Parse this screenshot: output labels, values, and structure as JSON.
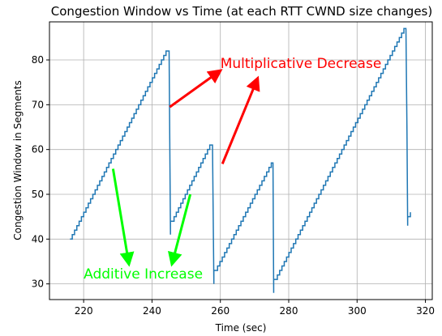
{
  "chart_data": {
    "type": "line",
    "title": "Congestion Window vs Time (at each RTT CWND size changes)",
    "xlabel": "Time (sec)",
    "ylabel": "Congestion Window in Segments",
    "xlim": [
      210,
      322
    ],
    "ylim": [
      26.5,
      88.5
    ],
    "xticks": [
      220,
      240,
      260,
      280,
      300,
      320
    ],
    "yticks": [
      30,
      40,
      50,
      60,
      70,
      80
    ],
    "grid": true,
    "series": [
      {
        "color": "#1f77b4",
        "segments": [
          {
            "kind": "ramp",
            "x0": 216,
            "x1": 244.1,
            "y0": 40,
            "y1": 82
          },
          {
            "kind": "flat",
            "x1": 245.0,
            "y": 82
          },
          {
            "kind": "drop",
            "points": [
              [
                245.4,
                41
              ],
              [
                245.4,
                44
              ]
            ]
          },
          {
            "kind": "ramp",
            "x0": 245.8,
            "x1": 256.9,
            "y0": 44,
            "y1": 61
          },
          {
            "kind": "flat",
            "x1": 257.7,
            "y": 61
          },
          {
            "kind": "drop",
            "points": [
              [
                258.1,
                30
              ],
              [
                258.1,
                33
              ]
            ]
          },
          {
            "kind": "ramp",
            "x0": 258.5,
            "x1": 274.9,
            "y0": 33,
            "y1": 57
          },
          {
            "kind": "flat",
            "x1": 275.4,
            "y": 57
          },
          {
            "kind": "drop",
            "points": [
              [
                275.6,
                28
              ],
              [
                275.6,
                31
              ]
            ]
          },
          {
            "kind": "ramp",
            "x0": 276.0,
            "x1": 313.7,
            "y0": 31,
            "y1": 87
          },
          {
            "kind": "flat",
            "x1": 314.3,
            "y": 87
          },
          {
            "kind": "drop",
            "points": [
              [
                314.6,
                64
              ],
              [
                314.8,
                43
              ],
              [
                314.8,
                45
              ],
              [
                315.6,
                45
              ],
              [
                315.6,
                46
              ]
            ]
          }
        ]
      }
    ],
    "annotations": [
      {
        "text": "Multiplicative Decrease",
        "color": "#ff0000",
        "x": 260,
        "y": 78.2,
        "arrows": [
          {
            "from": [
              245.2,
              69.5
            ],
            "to": [
              259.8,
              77.5
            ]
          },
          {
            "from": [
              260.6,
              56.8
            ],
            "to": [
              270.8,
              75.7
            ]
          }
        ]
      },
      {
        "text": "Additive Increase",
        "color": "#00ff00",
        "x": 220,
        "y": 31.2,
        "arrows": [
          {
            "from": [
              228.6,
              55.7
            ],
            "to": [
              233.2,
              34.6
            ]
          },
          {
            "from": [
              251.2,
              50.0
            ],
            "to": [
              245.9,
              34.6
            ]
          }
        ]
      }
    ]
  }
}
